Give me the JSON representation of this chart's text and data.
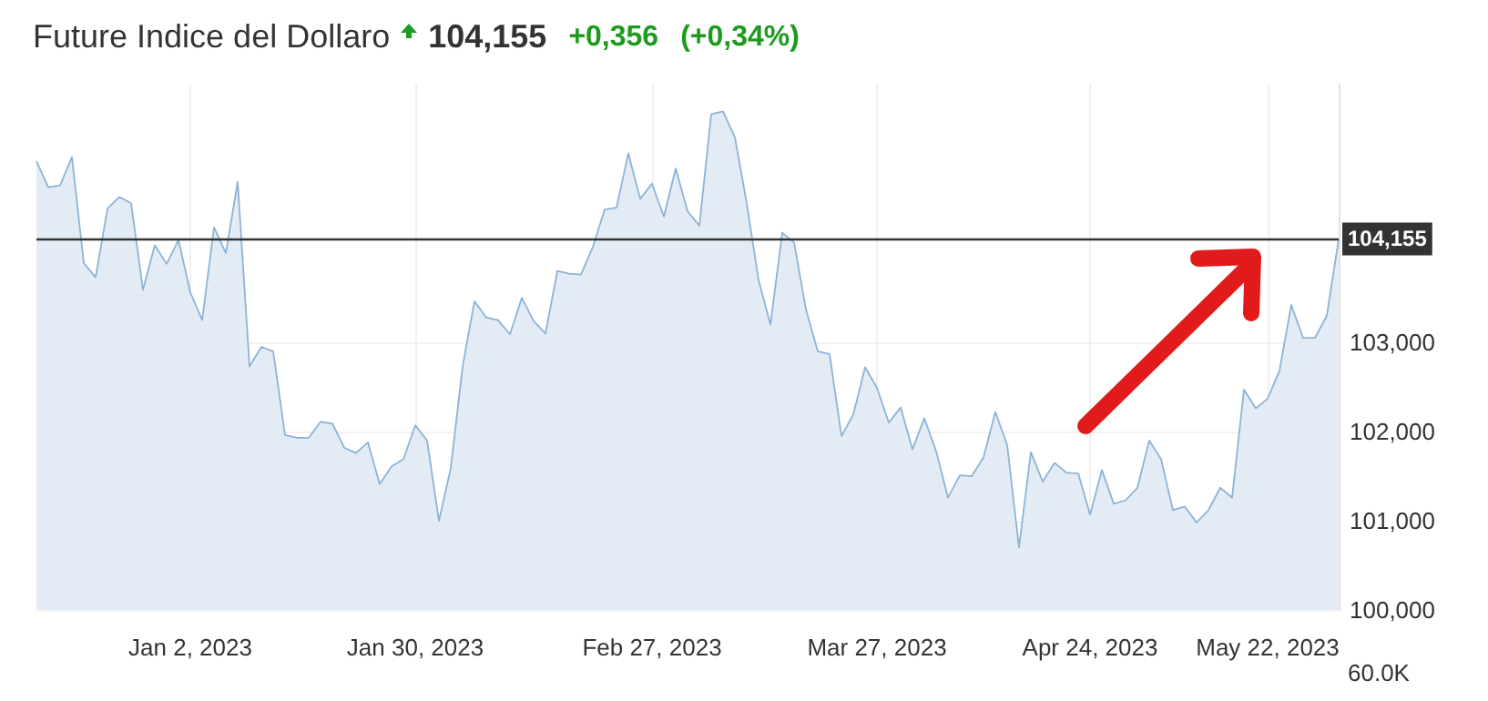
{
  "chart_data": {
    "type": "area",
    "title": "Future Indice del Dollaro",
    "annotations": [
      "104,155",
      "+0,356",
      "(+0,34%)",
      "60.0K"
    ],
    "categories": [
      null,
      null,
      null,
      null,
      null,
      null,
      null,
      null,
      null,
      null,
      null,
      null,
      null,
      "Jan 2, 2023",
      null,
      null,
      null,
      null,
      null,
      null,
      null,
      null,
      null,
      null,
      null,
      null,
      null,
      null,
      null,
      null,
      null,
      null,
      "Jan 30, 2023",
      null,
      null,
      null,
      null,
      null,
      null,
      null,
      null,
      null,
      null,
      null,
      null,
      null,
      null,
      null,
      null,
      null,
      null,
      null,
      "Feb 27, 2023",
      null,
      null,
      null,
      null,
      null,
      null,
      null,
      null,
      null,
      null,
      null,
      null,
      null,
      null,
      null,
      null,
      null,
      null,
      "Mar 27, 2023",
      null,
      null,
      null,
      null,
      null,
      null,
      null,
      null,
      null,
      null,
      null,
      null,
      null,
      null,
      null,
      null,
      null,
      "Apr 24, 2023",
      null,
      null,
      null,
      null,
      null,
      null,
      null,
      null,
      null,
      null,
      null,
      null,
      null,
      null,
      "May 22, 2023",
      null,
      null,
      null,
      null,
      null,
      null
    ],
    "values": [
      105.03,
      104.74,
      104.76,
      105.08,
      103.89,
      103.73,
      104.5,
      104.63,
      104.56,
      103.59,
      104.09,
      103.88,
      104.15,
      103.56,
      103.25,
      104.29,
      104.0,
      104.8,
      102.73,
      102.95,
      102.9,
      101.96,
      101.93,
      101.93,
      102.11,
      102.09,
      101.82,
      101.76,
      101.88,
      101.41,
      101.61,
      101.69,
      102.07,
      101.9,
      101.0,
      101.59,
      102.73,
      103.46,
      103.28,
      103.25,
      103.09,
      103.5,
      103.24,
      103.1,
      103.8,
      103.77,
      103.76,
      104.07,
      104.49,
      104.51,
      105.12,
      104.61,
      104.78,
      104.41,
      104.95,
      104.47,
      104.31,
      105.56,
      105.59,
      105.3,
      104.56,
      103.7,
      103.2,
      104.23,
      104.12,
      103.37,
      102.9,
      102.87,
      101.95,
      102.19,
      102.72,
      102.49,
      102.1,
      102.27,
      101.8,
      102.15,
      101.78,
      101.26,
      101.51,
      101.5,
      101.71,
      102.22,
      101.85,
      100.7,
      101.77,
      101.44,
      101.65,
      101.54,
      101.53,
      101.07,
      101.57,
      101.19,
      101.23,
      101.37,
      101.9,
      101.69,
      101.12,
      101.16,
      100.98,
      101.12,
      101.37,
      101.26,
      102.47,
      102.26,
      102.37,
      102.68,
      103.42,
      103.05,
      103.05,
      103.3,
      104.155
    ],
    "color": "#8db3d6",
    "ylim": [
      100,
      105.9
    ],
    "yticks": [
      {
        "value": 100,
        "label": "100,000"
      },
      {
        "value": 101,
        "label": "101,000"
      },
      {
        "value": 102,
        "label": "102,000"
      },
      {
        "value": 103,
        "label": "103,000"
      }
    ],
    "grid": true,
    "marker": "none",
    "ref_lines": [
      {
        "axis": "y",
        "value": 104.155,
        "label": "104,155",
        "color": "#333333"
      }
    ]
  }
}
